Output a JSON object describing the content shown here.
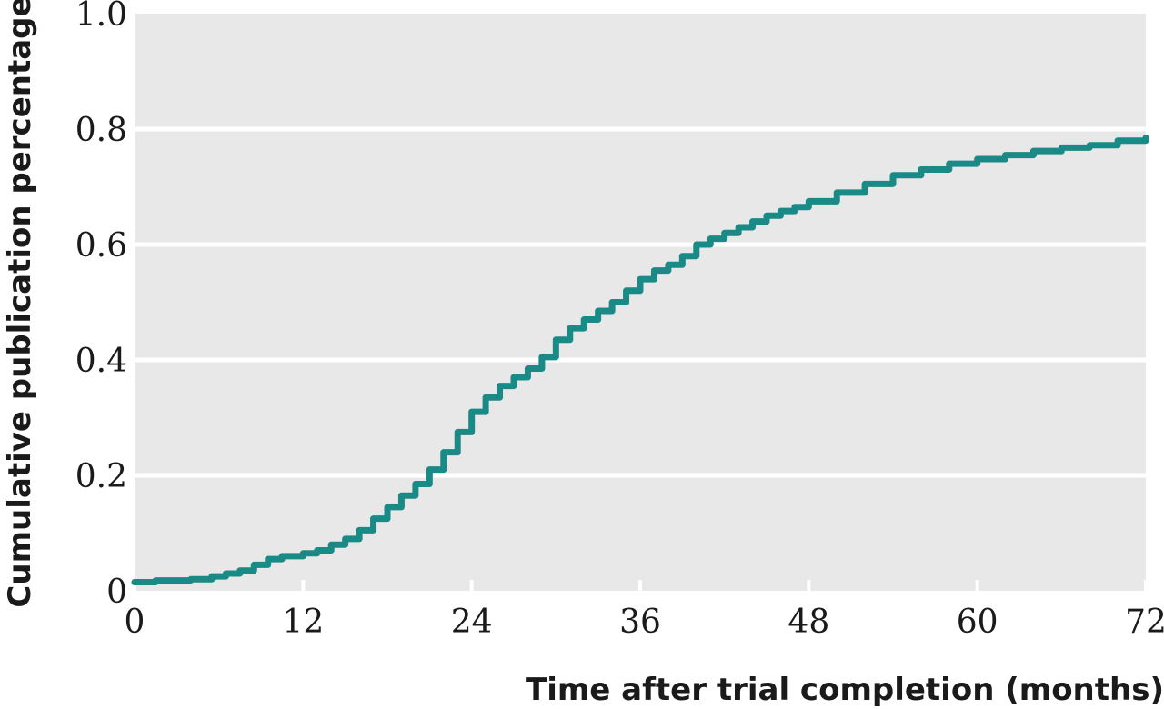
{
  "chart_data": {
    "type": "line",
    "xlabel": "Time after trial completion (months)",
    "ylabel": "Cumulative publication percentage",
    "xlim": [
      0,
      72
    ],
    "ylim": [
      0,
      1.0
    ],
    "xticks": [
      0,
      12,
      24,
      36,
      48,
      60,
      72
    ],
    "xtick_labels": [
      "0",
      "12",
      "24",
      "36",
      "48",
      "60",
      "72"
    ],
    "yticks": [
      0,
      0.2,
      0.4,
      0.6,
      0.8,
      1.0
    ],
    "ytick_labels": [
      "0",
      "0.2",
      "0.4",
      "0.6",
      "0.8",
      "1.0"
    ],
    "grid": true,
    "colors": {
      "background": "#e8e8e8",
      "grid": "#ffffff",
      "line": "#1a8a86"
    },
    "series": [
      {
        "step": true,
        "x": [
          0,
          1.5,
          4,
          5.5,
          6.5,
          7.5,
          8.5,
          9.5,
          10.5,
          12,
          13,
          14,
          15,
          16,
          17,
          18,
          19,
          20,
          21,
          22,
          23,
          24,
          25,
          26,
          27,
          28,
          29,
          30,
          31,
          32,
          33,
          34,
          35,
          36,
          37,
          38,
          39,
          40,
          41,
          42,
          43,
          44,
          45,
          46,
          47,
          48,
          50,
          52,
          54,
          56,
          58,
          60,
          62,
          64,
          66,
          68,
          70,
          72
        ],
        "y": [
          0.015,
          0.018,
          0.02,
          0.025,
          0.03,
          0.035,
          0.045,
          0.055,
          0.06,
          0.065,
          0.07,
          0.08,
          0.09,
          0.105,
          0.125,
          0.145,
          0.165,
          0.185,
          0.21,
          0.24,
          0.275,
          0.31,
          0.335,
          0.355,
          0.37,
          0.385,
          0.405,
          0.435,
          0.455,
          0.47,
          0.485,
          0.5,
          0.52,
          0.54,
          0.555,
          0.565,
          0.58,
          0.6,
          0.61,
          0.62,
          0.63,
          0.64,
          0.65,
          0.658,
          0.665,
          0.675,
          0.69,
          0.705,
          0.72,
          0.73,
          0.74,
          0.748,
          0.755,
          0.762,
          0.768,
          0.772,
          0.78,
          0.785
        ]
      }
    ]
  }
}
